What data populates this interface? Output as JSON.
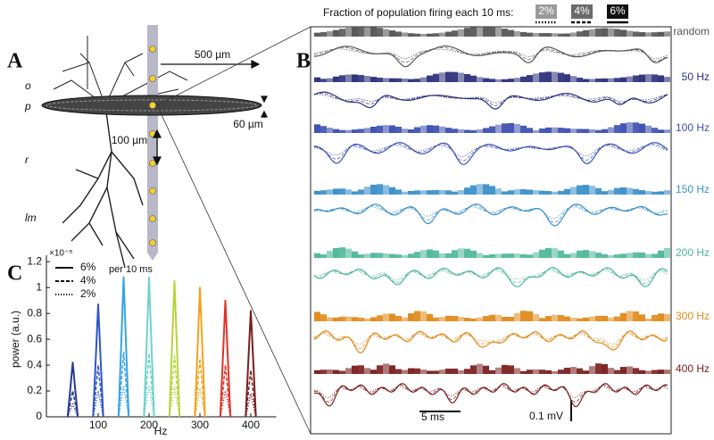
{
  "panel_a": {
    "label": "A",
    "layers": [
      "o",
      "p",
      "r",
      "lm"
    ],
    "distances": [
      "500 µm",
      "60 µm",
      "100 µm"
    ]
  },
  "panel_b": {
    "label": "B",
    "legend_title": "Fraction of population firing each 10 ms:",
    "legend": [
      {
        "label": "2%",
        "color": "#9a9a9a"
      },
      {
        "label": "4%",
        "color": "#6a6a6a"
      },
      {
        "label": "6%",
        "color": "#111111"
      }
    ],
    "rows": [
      {
        "label": "random",
        "color": "#555555"
      },
      {
        "label": "50 Hz",
        "color": "#2b2f7a"
      },
      {
        "label": "100 Hz",
        "color": "#3b4fb0"
      },
      {
        "label": "150 Hz",
        "color": "#3a8fc8"
      },
      {
        "label": "200 Hz",
        "color": "#4fb79a"
      },
      {
        "label": "300 Hz",
        "color": "#e08a1a"
      },
      {
        "label": "400 Hz",
        "color": "#7a1e1e"
      }
    ],
    "scale_time": "5 ms",
    "scale_voltage": "0.1 mV"
  },
  "chart_data": {
    "type": "line",
    "label": "C",
    "ylabel": "power (a.u.)",
    "xlabel": "Hz",
    "multiplier": "×10⁻⁵",
    "legend_note": "per 10 ms",
    "peak_colors": [
      "#2b3a8f",
      "#2f55c8",
      "#36a4e6",
      "#6fd3c8",
      "#b6d43a",
      "#f2a21e",
      "#e0322a",
      "#7a1e1e"
    ],
    "x": [
      40,
      45,
      50,
      55,
      60,
      90,
      95,
      100,
      105,
      110,
      140,
      145,
      150,
      155,
      160,
      190,
      195,
      200,
      205,
      210,
      240,
      245,
      250,
      255,
      260,
      290,
      295,
      300,
      305,
      310,
      340,
      345,
      350,
      355,
      360,
      390,
      395,
      400,
      405,
      410
    ],
    "series": [
      {
        "name": "6%",
        "dash": "solid",
        "values": [
          0,
          0.21,
          0.42,
          0.21,
          0,
          0,
          0.435,
          0.87,
          0.435,
          0,
          0,
          0.54,
          1.08,
          0.54,
          0,
          0,
          0.54,
          1.08,
          0.54,
          0,
          0,
          0.525,
          1.05,
          0.525,
          0,
          0,
          0.5,
          1.0,
          0.5,
          0,
          0,
          0.45,
          0.9,
          0.45,
          0,
          0,
          0.41,
          0.82,
          0.41,
          0
        ]
      },
      {
        "name": "4%",
        "dash": "dashed",
        "values": [
          0,
          0.1,
          0.2,
          0.1,
          0,
          0,
          0.2,
          0.4,
          0.2,
          0,
          0,
          0.25,
          0.5,
          0.25,
          0,
          0,
          0.245,
          0.49,
          0.245,
          0,
          0,
          0.235,
          0.47,
          0.235,
          0,
          0,
          0.225,
          0.45,
          0.225,
          0,
          0,
          0.2,
          0.4,
          0.2,
          0,
          0,
          0.18,
          0.36,
          0.18,
          0
        ]
      },
      {
        "name": "2%",
        "dash": "dotted",
        "values": [
          0,
          0.05,
          0.1,
          0.05,
          0,
          0,
          0.1,
          0.2,
          0.1,
          0,
          0,
          0.12,
          0.24,
          0.12,
          0,
          0,
          0.12,
          0.24,
          0.12,
          0,
          0,
          0.115,
          0.23,
          0.115,
          0,
          0,
          0.11,
          0.22,
          0.11,
          0,
          0,
          0.1,
          0.2,
          0.1,
          0,
          0,
          0.09,
          0.18,
          0.09,
          0
        ]
      }
    ],
    "xlim": [
      0,
      450
    ],
    "ylim": [
      0,
      1.25
    ],
    "xticks": [
      100,
      200,
      300,
      400
    ],
    "yticks": [
      0,
      0.2,
      0.4,
      0.6,
      0.8,
      1,
      1.2
    ]
  }
}
